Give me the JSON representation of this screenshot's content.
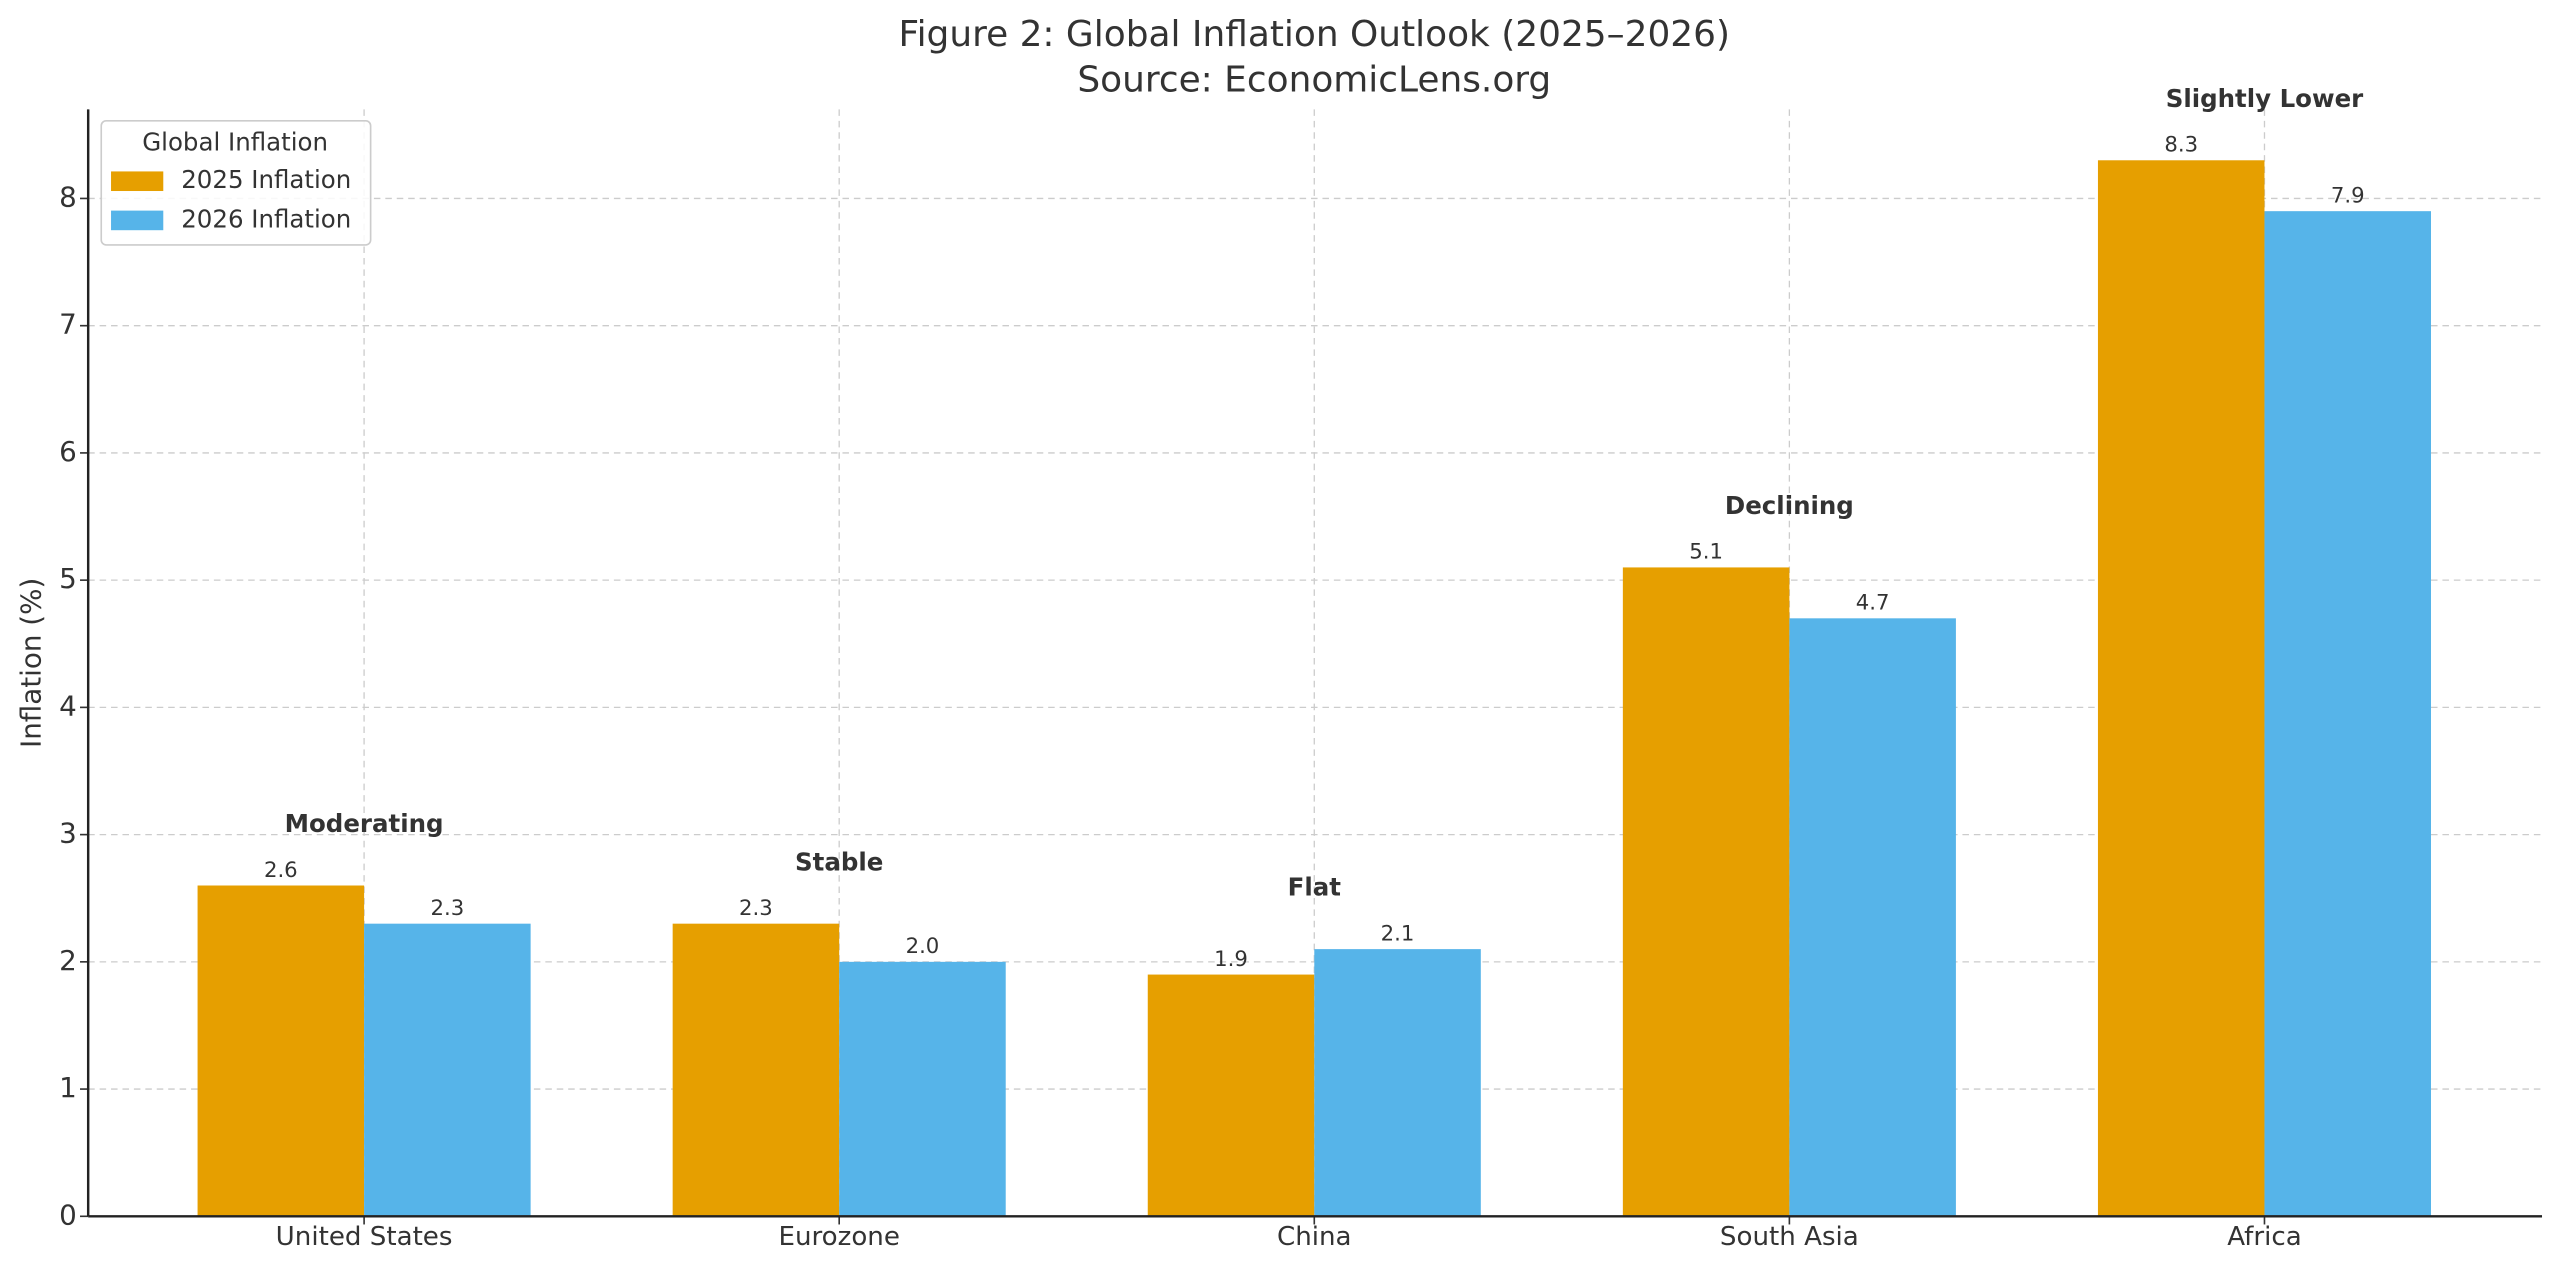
{
  "chart_data": {
    "type": "bar",
    "title": "Figure 2: Global Inflation Outlook (2025–2026)",
    "subtitle": "Source: EconomicLens.org",
    "y_label": "Inflation (%)",
    "categories": [
      "United States",
      "Eurozone",
      "China",
      "South Asia",
      "Africa"
    ],
    "series": [
      {
        "name": "2025 Inflation",
        "color": "#e69f00",
        "values": [
          2.6,
          2.3,
          1.9,
          5.1,
          8.3
        ],
        "value_labels": [
          "2.6",
          "2.3",
          "1.9",
          "5.1",
          "8.3"
        ]
      },
      {
        "name": "2026 Inflation",
        "color": "#56b4e9",
        "values": [
          2.3,
          2.0,
          2.1,
          4.7,
          7.9
        ],
        "value_labels": [
          "2.3",
          "2.0",
          "2.1",
          "4.7",
          "7.9"
        ]
      }
    ],
    "annotations": [
      "Moderating",
      "Stable",
      "Flat",
      "Declining",
      "Slightly Lower"
    ],
    "legend_title": "Global Inflation",
    "legend_position": "upper-left",
    "ylim": [
      0,
      8.7
    ],
    "yticks": [
      0,
      1,
      2,
      3,
      4,
      5,
      6,
      7,
      8
    ],
    "grid": true
  }
}
